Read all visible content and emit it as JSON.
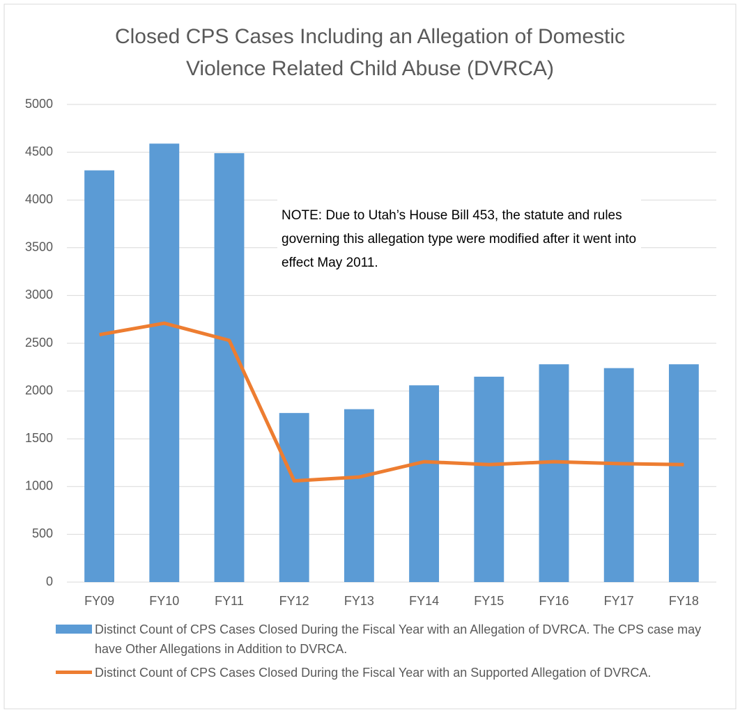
{
  "chart_data": {
    "type": "bar_line",
    "title": "Closed CPS Cases Including an Allegation of Domestic Violence Related Child Abuse (DVRCA)",
    "annotation": "NOTE: Due to Utah’s House Bill 453, the statute and rules governing this allegation type were modified  after  it went into effect May 2011.",
    "categories": [
      "FY09",
      "FY10",
      "FY11",
      "FY12",
      "FY13",
      "FY14",
      "FY15",
      "FY16",
      "FY17",
      "FY18"
    ],
    "series": [
      {
        "name": "Distinct Count of CPS Cases Closed During the Fiscal Year with an Allegation of DVRCA. The CPS case may have Other Allegations in Addition to DVRCA.",
        "type": "bar",
        "color": "#5b9bd5",
        "values": [
          4310,
          4590,
          4490,
          1770,
          1810,
          2060,
          2150,
          2280,
          2240,
          2280
        ]
      },
      {
        "name": "Distinct Count of CPS Cases Closed During the Fiscal Year with an Supported Allegation of DVRCA.",
        "type": "line",
        "color": "#ed7d31",
        "values": [
          2590,
          2710,
          2530,
          1060,
          1100,
          1260,
          1230,
          1260,
          1240,
          1230
        ]
      }
    ],
    "ylim": [
      0,
      5000
    ],
    "yticks": [
      0,
      500,
      1000,
      1500,
      2000,
      2500,
      3000,
      3500,
      4000,
      4500,
      5000
    ],
    "grid": true,
    "legend": "bottom"
  }
}
